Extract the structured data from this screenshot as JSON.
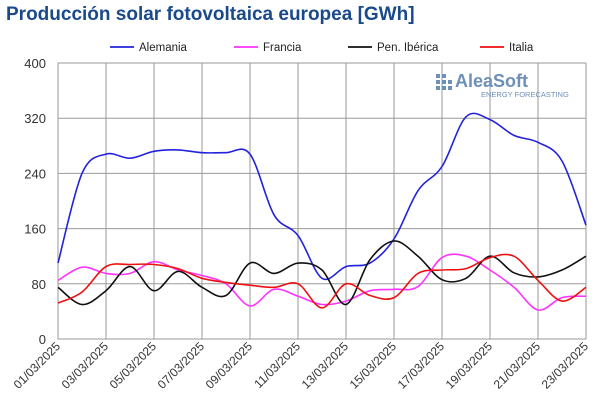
{
  "chart_data": {
    "type": "line",
    "title": "Producción solar fotovoltaica europea [GWh]",
    "xlabel": "",
    "ylabel": "",
    "ylim": [
      0,
      400
    ],
    "yticks": [
      0,
      80,
      160,
      240,
      320,
      400
    ],
    "grid": true,
    "legend_position": "top",
    "x": [
      "01/03/2025",
      "02/03/2025",
      "03/03/2025",
      "04/03/2025",
      "05/03/2025",
      "06/03/2025",
      "07/03/2025",
      "08/03/2025",
      "09/03/2025",
      "10/03/2025",
      "11/03/2025",
      "12/03/2025",
      "13/03/2025",
      "14/03/2025",
      "15/03/2025",
      "16/03/2025",
      "17/03/2025",
      "18/03/2025",
      "19/03/2025",
      "20/03/2025",
      "21/03/2025",
      "22/03/2025",
      "23/03/2025"
    ],
    "xtick_labels": [
      "01/03/2025",
      "03/03/2025",
      "05/03/2025",
      "07/03/2025",
      "09/03/2025",
      "11/03/2025",
      "13/03/2025",
      "15/03/2025",
      "17/03/2025",
      "19/03/2025",
      "21/03/2025",
      "23/03/2025"
    ],
    "series": [
      {
        "name": "Alemania",
        "color": "#2222dd",
        "values": [
          110,
          240,
          268,
          262,
          272,
          274,
          270,
          270,
          268,
          180,
          150,
          88,
          105,
          110,
          145,
          215,
          250,
          322,
          318,
          295,
          285,
          258,
          165
        ]
      },
      {
        "name": "Francia",
        "color": "#ff33ff",
        "values": [
          85,
          104,
          95,
          95,
          112,
          100,
          92,
          80,
          48,
          72,
          62,
          50,
          55,
          70,
          72,
          76,
          118,
          120,
          100,
          75,
          42,
          60,
          62
        ]
      },
      {
        "name": "Pen. Ibérica",
        "color": "#111111",
        "values": [
          75,
          50,
          70,
          105,
          70,
          98,
          75,
          63,
          110,
          95,
          110,
          100,
          50,
          115,
          142,
          120,
          86,
          88,
          120,
          96,
          90,
          100,
          120
        ]
      },
      {
        "name": "Italia",
        "color": "#ee1111",
        "values": [
          52,
          68,
          105,
          108,
          108,
          102,
          88,
          82,
          78,
          75,
          80,
          45,
          80,
          63,
          60,
          95,
          100,
          102,
          118,
          120,
          85,
          55,
          75
        ]
      }
    ]
  },
  "watermark": {
    "brand": "AleaSoft",
    "tagline": "ENERGY FORECASTING"
  },
  "colors": {
    "title": "#1a4a8c",
    "grid": "#9a9a9a",
    "axis": "#666666",
    "logo": "#6e8fb8"
  }
}
